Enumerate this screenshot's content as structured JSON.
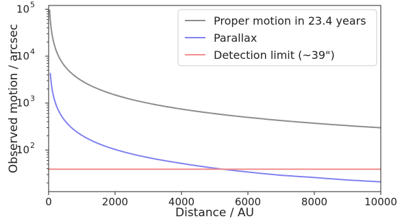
{
  "chart_data": {
    "type": "line",
    "xlabel": "Distance / AU",
    "ylabel": "Observed motion / arcsec",
    "xlim": [
      0,
      10000
    ],
    "ylim": [
      13,
      120000
    ],
    "yscale": "log",
    "x_ticks": [
      {
        "value": 0,
        "label": "0"
      },
      {
        "value": 2000,
        "label": "2000"
      },
      {
        "value": 4000,
        "label": "4000"
      },
      {
        "value": 6000,
        "label": "6000"
      },
      {
        "value": 8000,
        "label": "8000"
      },
      {
        "value": 10000,
        "label": "10000"
      }
    ],
    "y_ticks": [
      {
        "value": 100,
        "base": "10",
        "exp": "2"
      },
      {
        "value": 1000,
        "base": "10",
        "exp": "3"
      },
      {
        "value": 10000,
        "base": "10",
        "exp": "4"
      },
      {
        "value": 100000,
        "base": "10",
        "exp": "5"
      }
    ],
    "legend_position": "top-right",
    "series": [
      {
        "name": "Proper motion in 23.4 years",
        "color": "#8c8c8c",
        "x": [
          30,
          50,
          100,
          200,
          300,
          500,
          750,
          1000,
          1500,
          2000,
          3000,
          4000,
          5000,
          6000,
          7000,
          8000,
          9000,
          10000
        ],
        "y": [
          98000,
          60000,
          30000,
          15000,
          9900,
          5950,
          3970,
          2980,
          1990,
          1490,
          993,
          745,
          596,
          496,
          425,
          372,
          331,
          298
        ]
      },
      {
        "name": "Parallax",
        "color": "#8080f0",
        "x": [
          50,
          100,
          200,
          300,
          500,
          750,
          1000,
          1500,
          2000,
          3000,
          4000,
          5000,
          6000,
          7000,
          8000,
          9000,
          10000
        ],
        "y": [
          4400,
          2060,
          1030,
          688,
          412,
          275,
          206,
          137,
          103,
          69,
          52,
          41,
          34,
          29,
          26,
          23,
          21
        ]
      },
      {
        "name": "Detection limit (~39\")",
        "color": "#f08c8c",
        "x": [
          0,
          10000
        ],
        "y": [
          39,
          39
        ]
      }
    ]
  }
}
